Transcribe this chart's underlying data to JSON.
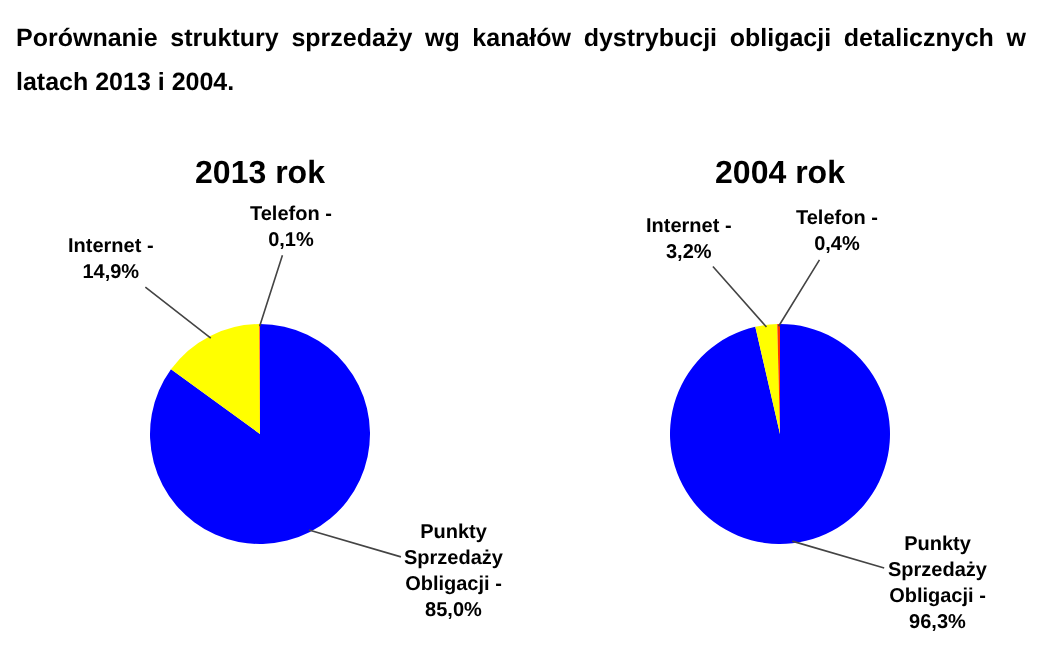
{
  "chart_data": [
    {
      "type": "pie",
      "title": "2013 rok",
      "annotations": [
        "Porównanie struktury sprzedaży wg kanałów dystrybucji obligacji detalicznych w latach 2013 i 2004."
      ],
      "categories": [
        "Punkty Sprzedaży Obligacji -",
        "Internet -",
        "Telefon -"
      ],
      "values": [
        85.0,
        14.9,
        0.1
      ],
      "value_labels": [
        "85,0%",
        "14,9%",
        "0,1%"
      ],
      "colors": [
        "#0000ff",
        "#ffff00",
        "#ff3300"
      ],
      "legend": false
    },
    {
      "type": "pie",
      "title": "2004 rok",
      "categories": [
        "Punkty Sprzedaży Obligacji -",
        "Internet -",
        "Telefon -"
      ],
      "values": [
        96.3,
        3.2,
        0.4
      ],
      "value_labels": [
        "96,3%",
        "3,2%",
        "0,4%"
      ],
      "colors": [
        "#0000ff",
        "#ffff00",
        "#ff3300"
      ],
      "legend": false
    }
  ]
}
